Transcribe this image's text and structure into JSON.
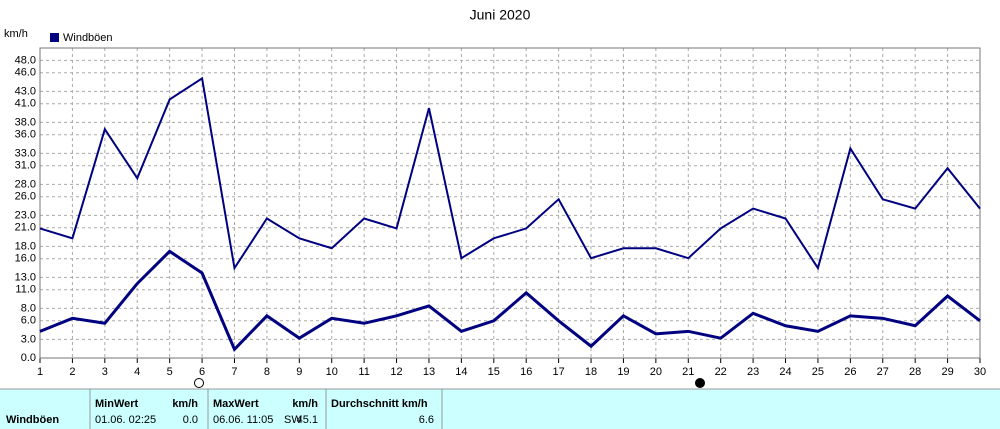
{
  "chart_data": {
    "type": "line",
    "title": "Juni 2020",
    "y_label": "km/h",
    "x": [
      1,
      2,
      3,
      4,
      5,
      6,
      7,
      8,
      9,
      10,
      11,
      12,
      13,
      14,
      15,
      16,
      17,
      18,
      19,
      20,
      21,
      22,
      23,
      24,
      25,
      26,
      27,
      28,
      29,
      30
    ],
    "xlim": [
      1,
      30
    ],
    "xticks": [
      1,
      2,
      3,
      4,
      5,
      6,
      7,
      8,
      9,
      10,
      11,
      12,
      13,
      14,
      15,
      16,
      17,
      18,
      19,
      20,
      21,
      22,
      23,
      24,
      25,
      26,
      27,
      28,
      29,
      30
    ],
    "ylim": [
      0,
      50
    ],
    "yticks": [
      {
        "value": 0,
        "label": "0.0"
      },
      {
        "value": 3,
        "label": "3.0"
      },
      {
        "value": 6,
        "label": "6.0"
      },
      {
        "value": 8,
        "label": "8.0"
      },
      {
        "value": 11,
        "label": "11.0"
      },
      {
        "value": 13,
        "label": "13.0"
      },
      {
        "value": 16,
        "label": "16.0"
      },
      {
        "value": 18,
        "label": "18.0"
      },
      {
        "value": 21,
        "label": "21.0"
      },
      {
        "value": 23,
        "label": "23.0"
      },
      {
        "value": 26,
        "label": "26.0"
      },
      {
        "value": 28,
        "label": "28.0"
      },
      {
        "value": 31,
        "label": "31.0"
      },
      {
        "value": 33,
        "label": "33.0"
      },
      {
        "value": 36,
        "label": "36.0"
      },
      {
        "value": 38,
        "label": "38.0"
      },
      {
        "value": 41,
        "label": "41.0"
      },
      {
        "value": 43,
        "label": "43.0"
      },
      {
        "value": 46,
        "label": "46.0"
      },
      {
        "value": 48,
        "label": "48.0"
      }
    ],
    "grid": true,
    "legend": "top-left",
    "series": [
      {
        "name": "Windböen",
        "color": "#000080",
        "values": [
          20.9,
          19.3,
          36.9,
          29,
          41.7,
          45.1,
          14.5,
          22.5,
          19.3,
          17.7,
          22.5,
          20.9,
          40.3,
          16.1,
          19.3,
          20.9,
          25.6,
          16.1,
          17.7,
          17.7,
          16.1,
          20.9,
          24.1,
          22.5,
          14.5,
          33.8,
          25.6,
          24.1,
          30.6,
          24.1
        ]
      },
      {
        "color": "#000080",
        "values": [
          4.3,
          6.4,
          5.6,
          12,
          17.2,
          13.7,
          1.4,
          6.8,
          3.2,
          6.4,
          5.6,
          6.8,
          8.4,
          4.3,
          6,
          10.5,
          6,
          1.9,
          6.8,
          3.9,
          4.3,
          3.2,
          7.2,
          5.2,
          4.3,
          6.8,
          6.4,
          5.2,
          10,
          6
        ]
      }
    ]
  },
  "summary": {
    "row_label": "Windböen",
    "min": {
      "header": "MinWert",
      "unit": "km/h",
      "time": "01.06.  02:25",
      "value": "0.0"
    },
    "max": {
      "header": "MaxWert",
      "unit": "km/h",
      "time": "06.06.  11:05",
      "direction": "SW",
      "value": "45.1"
    },
    "avg": {
      "header": "Durchschnitt km/h",
      "value": "6.6"
    }
  }
}
